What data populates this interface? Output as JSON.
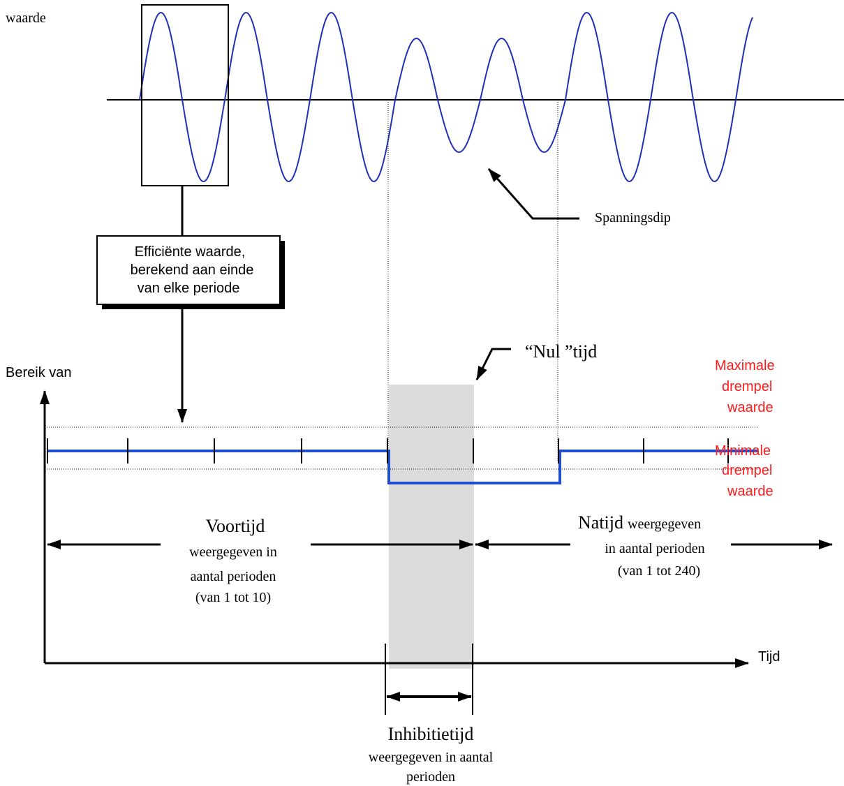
{
  "colors": {
    "signal": "#1f2fb8",
    "level": "#1f4fcf",
    "threshold_label": "#ff1a1a",
    "zero_time_band": "#dcdcdc",
    "line": "#000000"
  },
  "top": {
    "value_label": "waarde",
    "dip_label": "Spanningsdip"
  },
  "callout": {
    "line1": "Efficiënte waarde,",
    "line2": "berekend aan einde",
    "line3": "van elke periode"
  },
  "zero_time_label": "“Nul ”tijd",
  "bottom": {
    "range_label": "Bereik van",
    "max_threshold": [
      "Maximale",
      "drempel",
      "waarde"
    ],
    "min_threshold": [
      "Minimale",
      "drempel",
      "waarde"
    ],
    "time_label": "Tijd"
  },
  "pre_time": {
    "title": "Voortijd",
    "line1": "weergegeven in",
    "line2": "aantal perioden",
    "line3": "(van 1 tot 10)"
  },
  "post_time": {
    "title": "Natijd",
    "title_suffix": "weergegeven",
    "line1": "in aantal perioden",
    "line2": "(van 1 tot 240)"
  },
  "inhibit": {
    "title": "Inhibitietijd",
    "line1": "weergegeven in aantal",
    "line2": "perioden"
  }
}
